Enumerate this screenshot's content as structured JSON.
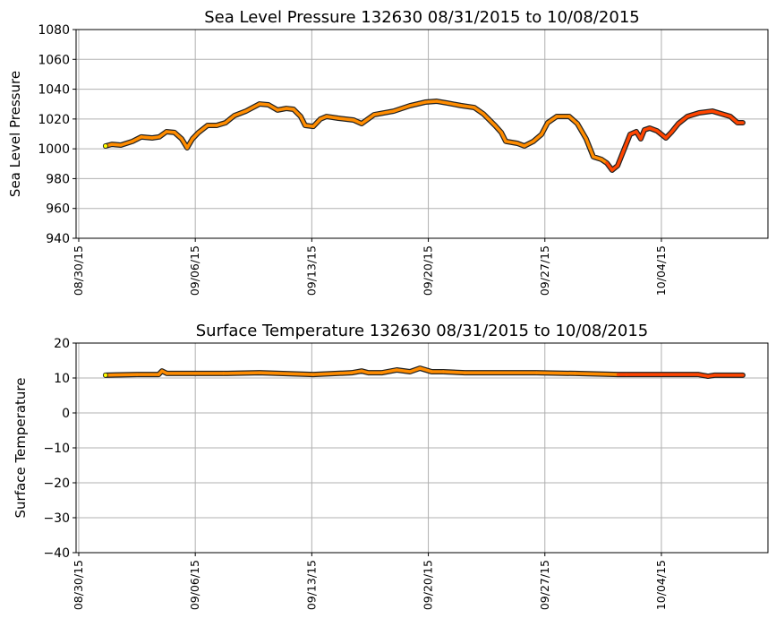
{
  "chart_data": [
    {
      "type": "line",
      "title": "Sea Level Pressure 132630  08/31/2015 to 10/08/2015",
      "xlabel": "",
      "ylabel": "Sea Level Pressure",
      "x_units": "days since 08/30/15",
      "xlim": [
        -0.16,
        41.4
      ],
      "ylim": [
        940,
        1080
      ],
      "yticks": [
        940,
        960,
        980,
        1000,
        1020,
        1040,
        1060,
        1080
      ],
      "ytick_labels": [
        "940",
        "960",
        "980",
        "1000",
        "1020",
        "1040",
        "1060",
        "1080"
      ],
      "xticks": [
        0,
        7,
        14,
        21,
        28,
        35
      ],
      "xtick_labels": [
        "08/30/15",
        "09/06/15",
        "09/13/15",
        "09/20/15",
        "09/27/15",
        "10/04/15"
      ],
      "grid": true,
      "x": [
        1.61,
        1.99,
        2.53,
        3.23,
        3.76,
        4.41,
        4.84,
        5.27,
        5.75,
        6.18,
        6.51,
        6.83,
        7.2,
        7.74,
        8.28,
        8.82,
        9.35,
        10.05,
        10.86,
        11.4,
        11.94,
        12.47,
        12.9,
        13.33,
        13.6,
        14.09,
        14.52,
        14.89,
        15.59,
        16.51,
        16.99,
        17.74,
        18.92,
        19.89,
        20.81,
        21.51,
        22.15,
        22.96,
        23.76,
        24.3,
        25.0,
        25.38,
        25.65,
        26.34,
        26.77,
        27.31,
        27.8,
        28.17,
        28.71,
        29.46,
        29.95,
        30.48,
        30.91,
        31.4,
        31.72,
        32.04,
        32.37,
        32.69,
        33.12,
        33.49,
        33.76,
        33.98,
        34.3,
        34.73,
        35.27,
        35.59,
        36.02,
        36.56,
        37.26,
        38.06,
        38.6,
        39.14,
        39.57,
        39.89
      ],
      "values": [
        1001.9,
        1003,
        1002.5,
        1005,
        1008,
        1007.3,
        1008,
        1011.5,
        1011,
        1006.7,
        1000.7,
        1006.7,
        1011,
        1015.7,
        1015.7,
        1017.5,
        1022.3,
        1025.3,
        1030.1,
        1029.5,
        1026,
        1027.1,
        1026.5,
        1021.7,
        1015.7,
        1015,
        1020,
        1021.7,
        1020.5,
        1019.3,
        1016.9,
        1022.9,
        1025.3,
        1028.9,
        1031.3,
        1031.9,
        1030.7,
        1029,
        1027.7,
        1023.5,
        1015.7,
        1011,
        1005,
        1003.7,
        1001.9,
        1005,
        1009.7,
        1017.5,
        1021.7,
        1021.7,
        1016.9,
        1006.7,
        994.7,
        992.9,
        990.5,
        985.7,
        988.7,
        997.7,
        1009.7,
        1011.5,
        1006.7,
        1012.7,
        1013.9,
        1012.1,
        1007.3,
        1011,
        1016.9,
        1021.7,
        1024.1,
        1025.3,
        1023.5,
        1021.7,
        1017.5,
        1017.5
      ]
    },
    {
      "type": "line",
      "title": "Surface Temperature 132630  08/31/2015 to 10/08/2015",
      "xlabel": "",
      "ylabel": "Surface Temperature",
      "x_units": "days since 08/30/15",
      "xlim": [
        -0.16,
        41.4
      ],
      "ylim": [
        -40,
        20
      ],
      "yticks": [
        -40,
        -30,
        -20,
        -10,
        0,
        10,
        20
      ],
      "ytick_labels": [
        "−40",
        "−30",
        "−20",
        "−10",
        "0",
        "10",
        "20"
      ],
      "xticks": [
        0,
        7,
        14,
        21,
        28,
        35
      ],
      "xtick_labels": [
        "08/30/15",
        "09/06/15",
        "09/13/15",
        "09/20/15",
        "09/27/15",
        "10/04/15"
      ],
      "grid": true,
      "x": [
        1.61,
        3.5,
        4.8,
        5.0,
        5.3,
        8.7,
        10.86,
        14.09,
        16.4,
        16.99,
        17.4,
        18.2,
        19.1,
        19.9,
        20.5,
        21.2,
        21.9,
        23.2,
        27.5,
        29.8,
        32.4,
        32.9,
        35.0,
        37.2,
        37.8,
        38.2,
        39.89
      ],
      "values": [
        10.8,
        11,
        11,
        12,
        11.3,
        11.3,
        11.5,
        11,
        11.5,
        12,
        11.5,
        11.5,
        12.3,
        11.8,
        12.8,
        11.8,
        11.8,
        11.5,
        11.5,
        11.3,
        11,
        11,
        11,
        11,
        10.5,
        10.8,
        10.8
      ]
    }
  ],
  "colors": {
    "start": "#ffff00",
    "early": "#ff8c00",
    "late": "#ff4500",
    "late_after_day": 31.7,
    "edge": "#222222",
    "grid": "#b0b0b0"
  }
}
